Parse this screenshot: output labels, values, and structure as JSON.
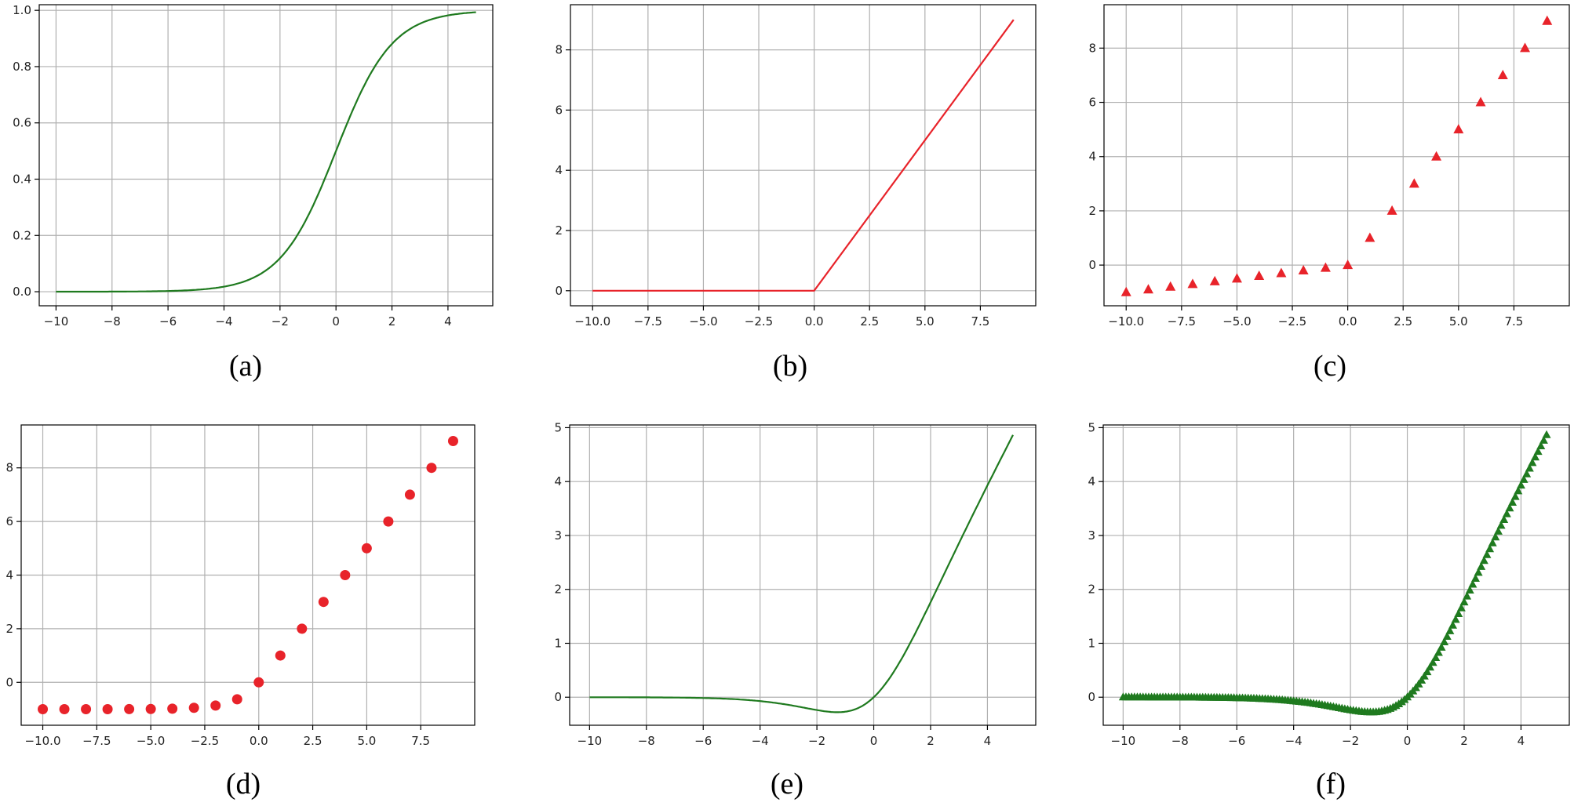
{
  "colors": {
    "green": "#1f7a1f",
    "red": "#e8232a",
    "grid": "#b0b0b0"
  },
  "chart_data": [
    {
      "caption": "(a)",
      "type": "line",
      "function": "sigmoid",
      "color": "green",
      "marker": "none",
      "xlim": [
        -10.6,
        5.6
      ],
      "ylim": [
        -0.05,
        1.02
      ],
      "grid": true,
      "x": [
        -10,
        -8,
        -6,
        -4,
        -3,
        -2,
        -1,
        0,
        1,
        2,
        3,
        4,
        5
      ],
      "y": [
        0.0,
        0.0003,
        0.0025,
        0.018,
        0.047,
        0.119,
        0.269,
        0.5,
        0.731,
        0.881,
        0.953,
        0.982,
        0.993
      ],
      "xticks": [
        -10,
        -8,
        -6,
        -4,
        -2,
        0,
        2,
        4
      ],
      "xtick_labels": [
        "−10",
        "−8",
        "−6",
        "−4",
        "−2",
        "0",
        "2",
        "4"
      ],
      "yticks": [
        0.0,
        0.2,
        0.4,
        0.6,
        0.8,
        1.0
      ],
      "ytick_labels": [
        "0.0",
        "0.2",
        "0.4",
        "0.6",
        "0.8",
        "1.0"
      ]
    },
    {
      "caption": "(b)",
      "type": "line",
      "function": "relu",
      "color": "red",
      "marker": "none",
      "xlim": [
        -11.0,
        10.0
      ],
      "ylim": [
        -0.5,
        9.5
      ],
      "grid": true,
      "x": [
        -10,
        0,
        9
      ],
      "y": [
        0,
        0,
        9
      ],
      "xticks": [
        -10,
        -7.5,
        -5,
        -2.5,
        0,
        2.5,
        5,
        7.5
      ],
      "xtick_labels": [
        "−10.0",
        "−7.5",
        "−5.0",
        "−2.5",
        "0.0",
        "2.5",
        "5.0",
        "7.5"
      ],
      "yticks": [
        0,
        2,
        4,
        6,
        8
      ],
      "ytick_labels": [
        "0",
        "2",
        "4",
        "6",
        "8"
      ]
    },
    {
      "caption": "(c)",
      "type": "scatter",
      "function": "leaky_relu",
      "color": "red",
      "marker": "triangle",
      "xlim": [
        -11.0,
        10.0
      ],
      "ylim": [
        -1.5,
        9.6
      ],
      "grid": true,
      "x": [
        -10,
        -9,
        -8,
        -7,
        -6,
        -5,
        -4,
        -3,
        -2,
        -1,
        0,
        1,
        2,
        3,
        4,
        5,
        6,
        7,
        8,
        9
      ],
      "y": [
        -1.0,
        -0.9,
        -0.8,
        -0.7,
        -0.6,
        -0.5,
        -0.4,
        -0.3,
        -0.2,
        -0.1,
        0,
        1,
        2,
        3,
        4,
        5,
        6,
        7,
        8,
        9
      ],
      "xticks": [
        -10,
        -7.5,
        -5,
        -2.5,
        0,
        2.5,
        5,
        7.5
      ],
      "xtick_labels": [
        "−10.0",
        "−7.5",
        "−5.0",
        "−2.5",
        "0.0",
        "2.5",
        "5.0",
        "7.5"
      ],
      "yticks": [
        0,
        2,
        4,
        6,
        8
      ],
      "ytick_labels": [
        "0",
        "2",
        "4",
        "6",
        "8"
      ]
    },
    {
      "caption": "(d)",
      "type": "scatter",
      "function": "elu",
      "color": "red",
      "marker": "circle",
      "xlim": [
        -11.0,
        10.0
      ],
      "ylim": [
        -1.6,
        9.6
      ],
      "grid": true,
      "x": [
        -10,
        -9,
        -8,
        -7,
        -6,
        -5,
        -4,
        -3,
        -2,
        -1,
        0,
        1,
        2,
        3,
        4,
        5,
        6,
        7,
        8,
        9
      ],
      "y": [
        -1.0,
        -1.0,
        -1.0,
        -1.0,
        -0.998,
        -0.993,
        -0.982,
        -0.95,
        -0.865,
        -0.632,
        0,
        1,
        2,
        3,
        4,
        5,
        6,
        7,
        8,
        9
      ],
      "xticks": [
        -10,
        -7.5,
        -5,
        -2.5,
        0,
        2.5,
        5,
        7.5
      ],
      "xtick_labels": [
        "−10.0",
        "−7.5",
        "−5.0",
        "−2.5",
        "0.0",
        "2.5",
        "5.0",
        "7.5"
      ],
      "yticks": [
        0,
        2,
        4,
        6,
        8
      ],
      "ytick_labels": [
        "0",
        "2",
        "4",
        "6",
        "8"
      ]
    },
    {
      "caption": "(e)",
      "type": "line",
      "function": "swish",
      "color": "green",
      "marker": "none",
      "xlim": [
        -10.7,
        5.7
      ],
      "ylim": [
        -0.52,
        5.05
      ],
      "grid": true,
      "x": [
        -10,
        -8,
        -6,
        -5,
        -4,
        -3,
        -2,
        -1.5,
        -1.28,
        -1,
        -0.5,
        0,
        0.5,
        1,
        1.5,
        2,
        3,
        4,
        4.9
      ],
      "y": [
        -0.0005,
        -0.003,
        -0.015,
        -0.033,
        -0.072,
        -0.142,
        -0.238,
        -0.273,
        -0.278,
        -0.269,
        -0.189,
        0,
        0.311,
        0.731,
        1.227,
        1.762,
        2.858,
        3.928,
        4.863
      ],
      "xticks": [
        -10,
        -8,
        -6,
        -4,
        -2,
        0,
        2,
        4
      ],
      "xtick_labels": [
        "−10",
        "−8",
        "−6",
        "−4",
        "−2",
        "0",
        "2",
        "4"
      ],
      "yticks": [
        0,
        1,
        2,
        3,
        4,
        5
      ],
      "ytick_labels": [
        "0",
        "1",
        "2",
        "3",
        "4",
        "5"
      ]
    },
    {
      "caption": "(f)",
      "type": "line",
      "function": "swish",
      "color": "green",
      "marker": "triangle",
      "xlim": [
        -10.7,
        5.7
      ],
      "ylim": [
        -0.52,
        5.05
      ],
      "grid": true,
      "x_start": -10,
      "x_end": 4.9,
      "x_step": 0.1,
      "xticks": [
        -10,
        -8,
        -6,
        -4,
        -2,
        0,
        2,
        4
      ],
      "xtick_labels": [
        "−10",
        "−8",
        "−6",
        "−4",
        "−2",
        "0",
        "2",
        "4"
      ],
      "yticks": [
        0,
        1,
        2,
        3,
        4,
        5
      ],
      "ytick_labels": [
        "0",
        "1",
        "2",
        "3",
        "4",
        "5"
      ]
    }
  ]
}
